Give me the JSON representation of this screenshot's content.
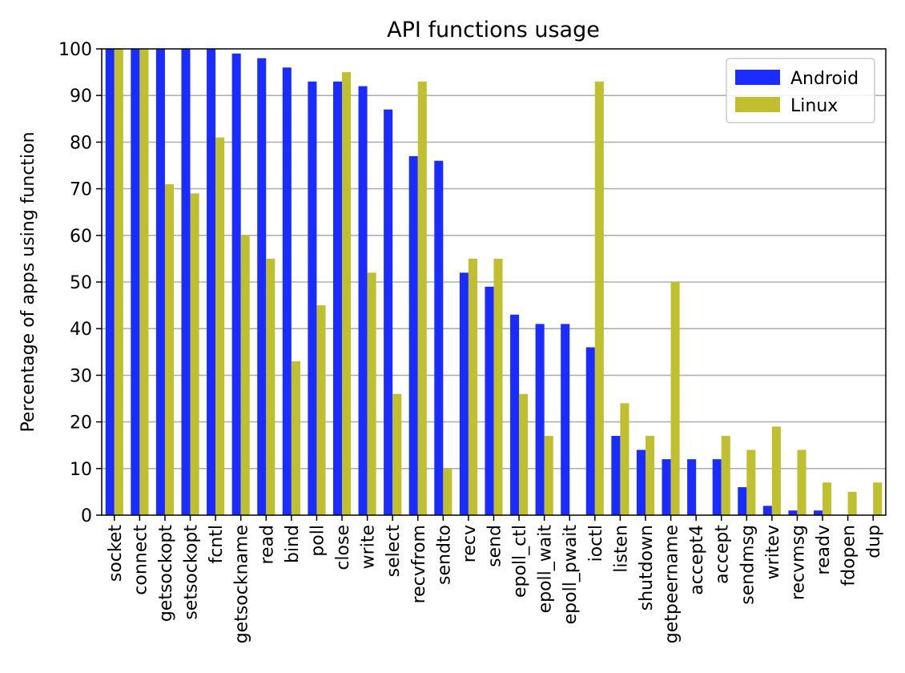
{
  "chart_data": {
    "type": "bar",
    "title": "API functions usage",
    "xlabel": "",
    "ylabel": "Percentage of apps using function",
    "ylim": [
      0,
      100
    ],
    "yticks": [
      0,
      10,
      20,
      30,
      40,
      50,
      60,
      70,
      80,
      90,
      100
    ],
    "grid": "horizontal",
    "legend_position": "top-right",
    "categories": [
      "socket",
      "connect",
      "getsockopt",
      "setsockopt",
      "fcntl",
      "getsockname",
      "read",
      "bind",
      "poll",
      "close",
      "write",
      "select",
      "recvfrom",
      "sendto",
      "recv",
      "send",
      "epoll_ctl",
      "epoll_wait",
      "epoll_pwait",
      "ioctl",
      "listen",
      "shutdown",
      "getpeername",
      "accept4",
      "accept",
      "sendmsg",
      "writev",
      "recvmsg",
      "readv",
      "fdopen",
      "dup"
    ],
    "series": [
      {
        "name": "Android",
        "color": "#1a2cff",
        "values": [
          100,
          100,
          100,
          100,
          100,
          99,
          98,
          96,
          93,
          93,
          92,
          87,
          77,
          76,
          52,
          49,
          43,
          41,
          41,
          36,
          17,
          14,
          12,
          12,
          12,
          6,
          2,
          1,
          1,
          0,
          0
        ]
      },
      {
        "name": "Linux",
        "color": "#bfbf2f",
        "values": [
          100,
          100,
          71,
          69,
          81,
          60,
          55,
          33,
          45,
          95,
          52,
          26,
          93,
          10,
          55,
          55,
          26,
          17,
          0,
          93,
          24,
          17,
          50,
          0,
          17,
          14,
          19,
          14,
          7,
          5,
          7
        ]
      }
    ]
  }
}
